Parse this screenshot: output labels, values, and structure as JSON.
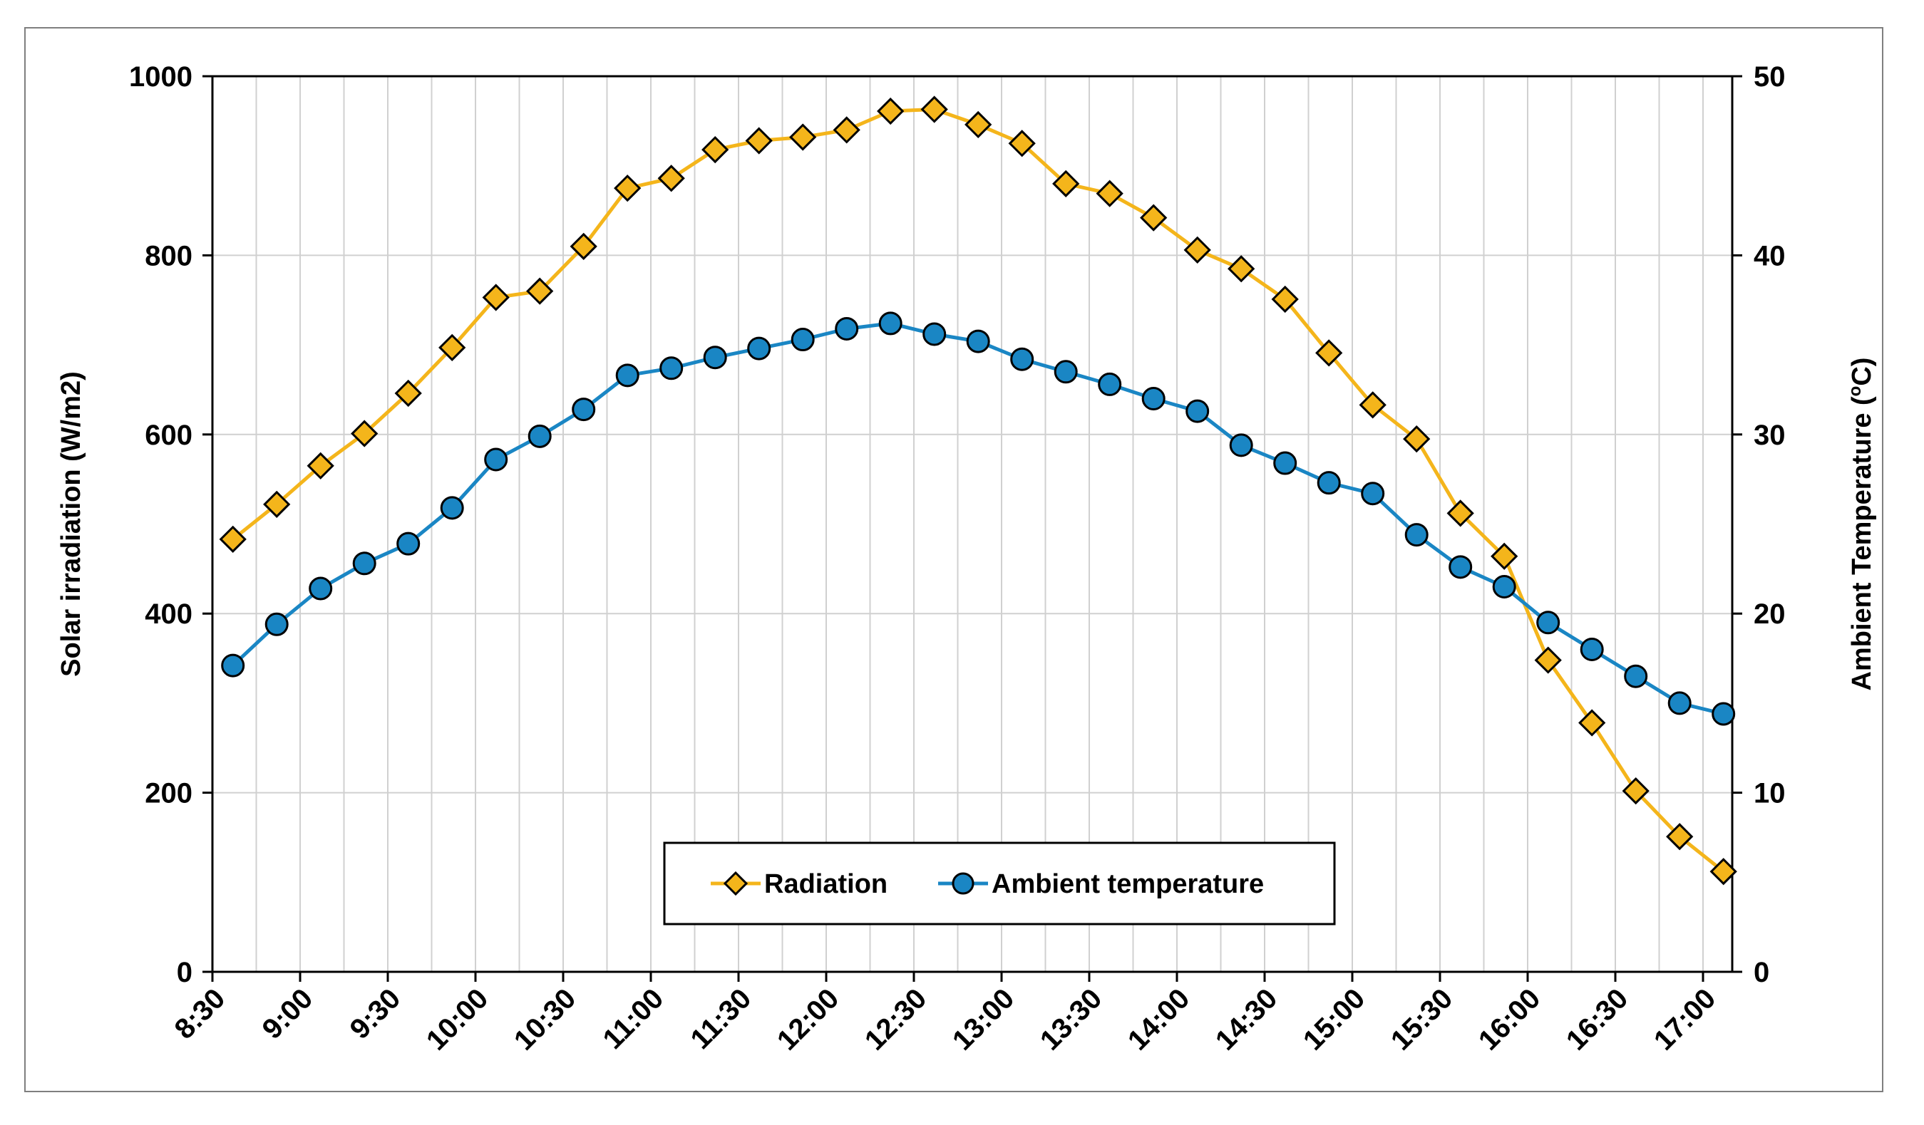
{
  "chart_data": {
    "type": "line",
    "title": "",
    "xlabel": "",
    "ylabel": "Solar irradiation (W/m2)",
    "y2label_main": "Ambient Temperature (",
    "y2label_sup": "o",
    "y2label_end": "C)",
    "ylim": [
      0,
      1000
    ],
    "y2lim": [
      0,
      50
    ],
    "yticks": [
      "0",
      "200",
      "400",
      "600",
      "800",
      "1000"
    ],
    "y2ticks": [
      "0",
      "10",
      "20",
      "30",
      "40",
      "50"
    ],
    "xlim_minutes": [
      510,
      1030
    ],
    "xticks": [
      "8:30",
      "9:00",
      "9:30",
      "10:00",
      "10:30",
      "11:00",
      "11:30",
      "12:00",
      "12:30",
      "13:00",
      "13:30",
      "14:00",
      "14:30",
      "15:00",
      "15:30",
      "16:00",
      "16:30",
      "17:00"
    ],
    "grid": true,
    "legend_position": "bottom-center",
    "x_start_minutes": 517,
    "x_step_minutes": 15,
    "series": [
      {
        "name": "Radiation",
        "axis": "left",
        "marker": "diamond",
        "color": "#f4b51b",
        "values": [
          483,
          522,
          565,
          601,
          646,
          697,
          753,
          760,
          810,
          875,
          886,
          918,
          928,
          932,
          940,
          961,
          963,
          946,
          925,
          880,
          869,
          842,
          806,
          785,
          751,
          691,
          633,
          595,
          512,
          464,
          348,
          278,
          202,
          151,
          112
        ]
      },
      {
        "name": "Ambient temperature",
        "axis": "right",
        "marker": "circle",
        "color": "#1a86c4",
        "values": [
          17.1,
          19.4,
          21.4,
          22.8,
          23.9,
          25.9,
          28.6,
          29.9,
          31.4,
          33.3,
          33.7,
          34.3,
          34.8,
          35.3,
          35.9,
          36.2,
          35.6,
          35.2,
          34.2,
          33.5,
          32.8,
          32.0,
          31.3,
          29.4,
          28.4,
          27.3,
          26.7,
          24.4,
          22.6,
          21.5,
          19.5,
          18.0,
          16.5,
          15.0,
          14.4
        ]
      }
    ]
  }
}
